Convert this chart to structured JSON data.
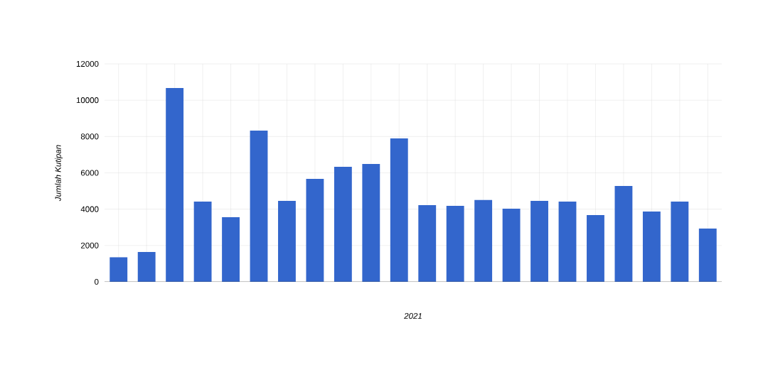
{
  "chart_data": {
    "type": "bar",
    "xlabel": "2021",
    "ylabel": "Jumlah Kutipan",
    "categories": [
      null,
      null,
      null,
      null,
      null,
      null,
      null,
      null,
      null,
      null,
      null,
      null,
      null,
      null,
      null,
      null,
      null,
      null,
      null,
      null,
      null,
      null
    ],
    "values": [
      1350,
      1640,
      10670,
      4420,
      3560,
      8330,
      4460,
      5670,
      6330,
      6490,
      7900,
      4220,
      4180,
      4500,
      4030,
      4460,
      4420,
      3670,
      5280,
      3870,
      4420,
      2930
    ],
    "color": "#3366cc",
    "ylim": [
      0,
      12000
    ],
    "yticks": [
      0,
      2000,
      4000,
      6000,
      8000,
      10000,
      12000
    ],
    "grid": true,
    "tick_labels": "y"
  }
}
